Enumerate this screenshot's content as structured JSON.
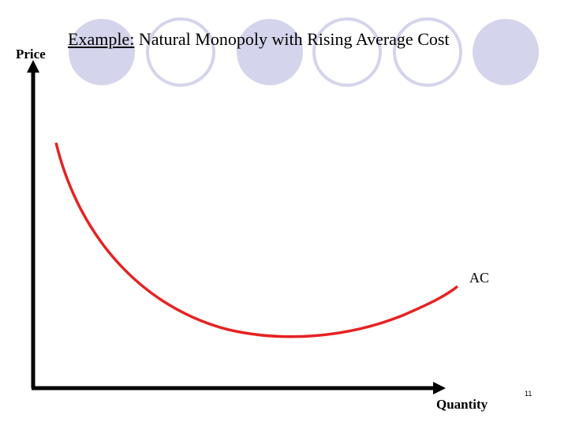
{
  "slide": {
    "title_prefix": "Example:",
    "title_rest": " Natural Monopoly with Rising Average Cost",
    "page_number": "11"
  },
  "axes": {
    "y_label": "Price",
    "x_label": "Quantity"
  },
  "curve": {
    "label": "AC",
    "color": "#e52222"
  },
  "decoration": {
    "circle_fill": "#d4d4ec",
    "circle_stroke": "#d4d4ec",
    "circle_styles": [
      "filled",
      "outlined",
      "filled",
      "outlined",
      "filled",
      "outlined",
      "filled"
    ]
  }
}
